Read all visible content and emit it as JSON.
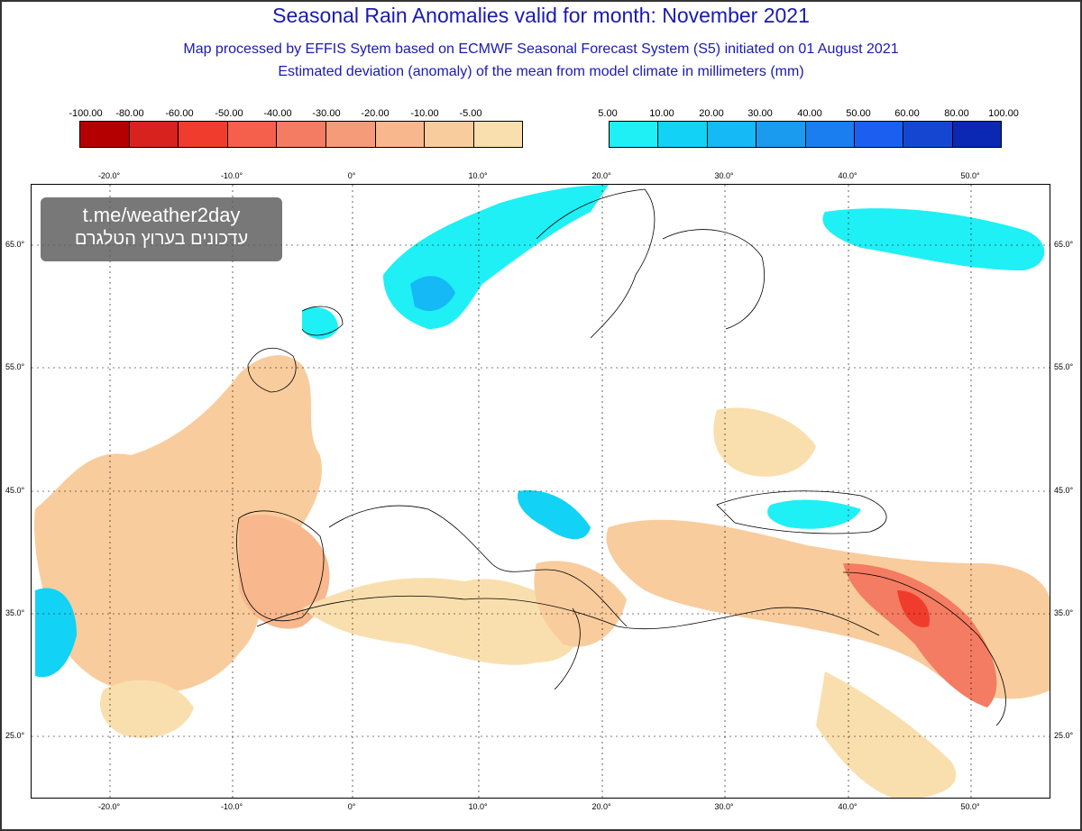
{
  "header": {
    "title": "Seasonal Rain Anomalies valid for month: November 2021",
    "subtitle1": "Map processed by EFFIS Sytem based on ECMWF Seasonal Forecast System (S5) initiated on 01 August 2021",
    "subtitle2": "Estimated deviation (anomaly) of the mean from model climate in millimeters (mm)"
  },
  "colorbar_dry": {
    "labels": [
      "-100.00",
      "-80.00",
      "-60.00",
      "-50.00",
      "-40.00",
      "-30.00",
      "-20.00",
      "-10.00",
      "-5.00"
    ],
    "colors": [
      "#b40000",
      "#d8221e",
      "#f03c2d",
      "#f4604b",
      "#f47c62",
      "#f59b79",
      "#f8b78c",
      "#f9cc9d",
      "#fadfae"
    ]
  },
  "colorbar_wet": {
    "labels": [
      "5.00",
      "10.00",
      "20.00",
      "30.00",
      "40.00",
      "50.00",
      "60.00",
      "80.00",
      "100.00"
    ],
    "colors": [
      "#1ef0f5",
      "#12d2f5",
      "#14b9f5",
      "#1a9bf0",
      "#1a7ef0",
      "#1a5ff0",
      "#1446d2",
      "#0a28b4"
    ]
  },
  "axes": {
    "lon_labels": [
      "-20.0°",
      "-10.0°",
      "0°",
      "10.0°",
      "20.0°",
      "30.0°",
      "40.0°",
      "50.0°"
    ],
    "lat_labels": [
      "65.0°",
      "55.0°",
      "45.0°",
      "35.0°",
      "25.0°"
    ]
  },
  "watermark": {
    "line1": "t.me/weather2day",
    "line2": "עדכונים בערוץ הטלגרם"
  }
}
